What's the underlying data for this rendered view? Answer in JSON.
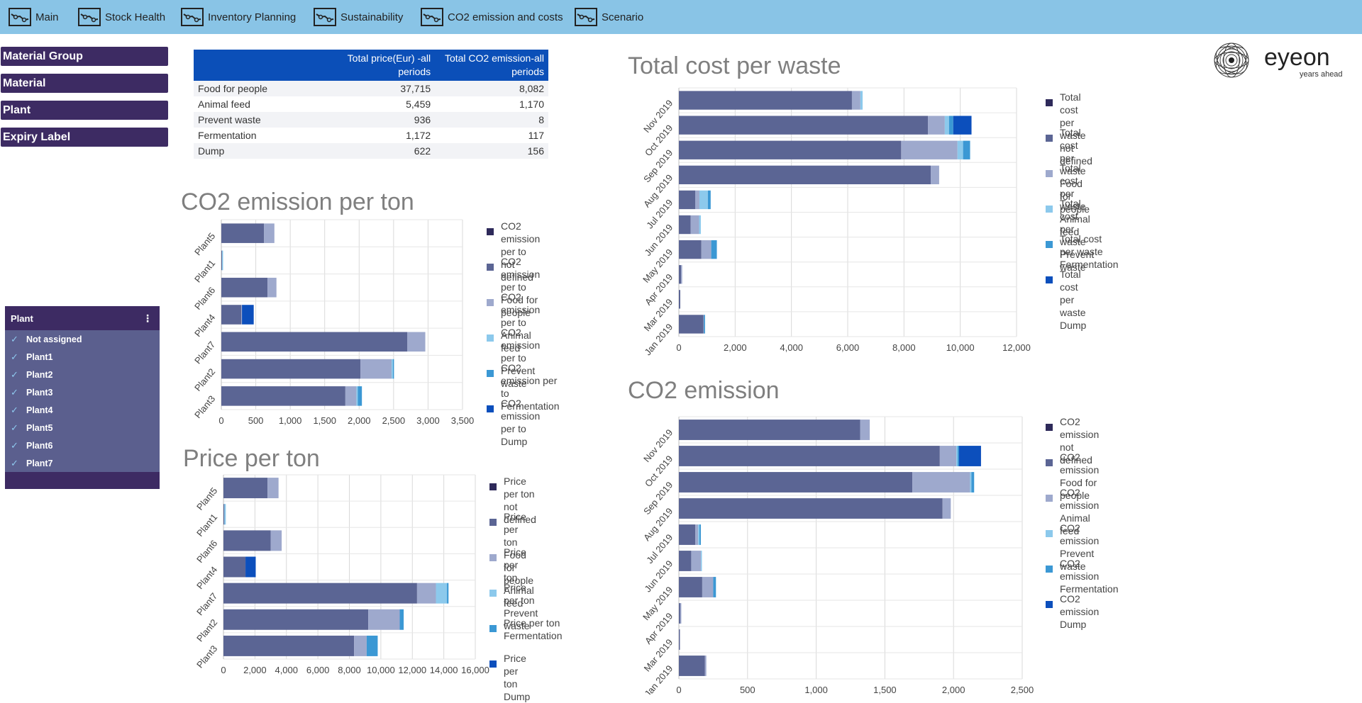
{
  "nav": {
    "tabs": [
      {
        "label": "Main"
      },
      {
        "label": "Stock Health"
      },
      {
        "label": "Inventory Planning"
      },
      {
        "label": "Sustainability"
      },
      {
        "label": "CO2 emission and costs"
      },
      {
        "label": "Scenario"
      }
    ]
  },
  "filters": {
    "buttons": [
      "Material Group",
      "Material",
      "Plant",
      "Expiry Label"
    ]
  },
  "plant_filter": {
    "title": "Plant",
    "items": [
      "Not assigned",
      "Plant1",
      "Plant2",
      "Plant3",
      "Plant4",
      "Plant5",
      "Plant6",
      "Plant7"
    ]
  },
  "summary_table": {
    "headers": [
      "",
      "Total price(Eur) -all periods",
      "Total CO2 emission-all periods"
    ],
    "rows": [
      [
        "Food for people",
        "37,715",
        "8,082"
      ],
      [
        "Animal feed",
        "5,459",
        "1,170"
      ],
      [
        "Prevent waste",
        "936",
        "8"
      ],
      [
        "Fermentation",
        "1,172",
        "117"
      ],
      [
        "Dump",
        "622",
        "156"
      ]
    ]
  },
  "logo": {
    "brand": "eyeon",
    "tagline": "years ahead"
  },
  "colors": {
    "not_defined": "#2e2a5a",
    "food_for_people": "#5b6594",
    "animal_feed": "#9ea9cd",
    "prevent_waste": "#8cc9ec",
    "fermentation": "#3b98d4",
    "dump": "#0c4fbc"
  },
  "chart_data": [
    {
      "id": "co2-per-ton",
      "type": "bar",
      "orientation": "horizontal",
      "stacked": true,
      "title": "CO2 emission per ton",
      "categories": [
        "Plant5",
        "Plant1",
        "Plant6",
        "Plant4",
        "Plant7",
        "Plant2",
        "Plant3"
      ],
      "xlim": [
        0,
        3500
      ],
      "xticks": [
        "0",
        "500",
        "1,000",
        "1,500",
        "2,000",
        "2,500",
        "3,000",
        "3,500"
      ],
      "tick_values": [
        0,
        500,
        1000,
        1500,
        2000,
        2500,
        3000,
        3500
      ],
      "series": [
        {
          "name": "CO2 emission per to\nnot defined",
          "color": "#2e2a5a",
          "values": [
            0,
            0,
            0,
            0,
            0,
            0,
            0
          ]
        },
        {
          "name": "CO2 emission per to\nFood for people",
          "color": "#5b6594",
          "values": [
            620,
            10,
            670,
            290,
            2700,
            2020,
            1800
          ]
        },
        {
          "name": "CO2 emission per to\nAnimal feed",
          "color": "#9ea9cd",
          "values": [
            150,
            0,
            130,
            10,
            260,
            450,
            160
          ]
        },
        {
          "name": "CO2 emission per to\nPrevent waste",
          "color": "#8cc9ec",
          "values": [
            0,
            10,
            0,
            0,
            0,
            20,
            20
          ]
        },
        {
          "name": "CO2 emission per to\nFermentation",
          "color": "#3b98d4",
          "values": [
            0,
            0,
            0,
            0,
            0,
            10,
            60
          ]
        },
        {
          "name": "CO2 emission per to\nDump",
          "color": "#0c4fbc",
          "values": [
            0,
            0,
            0,
            170,
            0,
            0,
            0
          ]
        }
      ]
    },
    {
      "id": "price-per-ton",
      "type": "bar",
      "orientation": "horizontal",
      "stacked": true,
      "title": "Price per ton",
      "categories": [
        "Plant5",
        "Plant1",
        "Plant6",
        "Plant4",
        "Plant7",
        "Plant2",
        "Plant3"
      ],
      "xlim": [
        0,
        16000
      ],
      "xticks": [
        "0",
        "2,000",
        "4,000",
        "6,000",
        "8,000",
        "10,000",
        "12,000",
        "14,000",
        "16,000"
      ],
      "tick_values": [
        0,
        2000,
        4000,
        6000,
        8000,
        10000,
        12000,
        14000,
        16000
      ],
      "series": [
        {
          "name": "Price per ton\nnot defined",
          "color": "#2e2a5a",
          "values": [
            0,
            0,
            0,
            0,
            0,
            0,
            0
          ]
        },
        {
          "name": "Price per ton\nFood for people",
          "color": "#5b6594",
          "values": [
            2800,
            50,
            3000,
            1400,
            12300,
            9200,
            8300
          ]
        },
        {
          "name": "Price per ton\nAnimal feed",
          "color": "#9ea9cd",
          "values": [
            700,
            0,
            700,
            0,
            1200,
            2000,
            800
          ]
        },
        {
          "name": "Price per ton\nPrevent waste",
          "color": "#8cc9ec",
          "values": [
            0,
            100,
            0,
            0,
            700,
            0,
            0
          ]
        },
        {
          "name": "Price per ton\nFermentation",
          "color": "#3b98d4",
          "values": [
            0,
            0,
            0,
            0,
            100,
            250,
            700
          ]
        },
        {
          "name": "Price per ton\nDump",
          "color": "#0c4fbc",
          "values": [
            0,
            0,
            0,
            650,
            0,
            0,
            0
          ]
        }
      ]
    },
    {
      "id": "total-cost-per-waste",
      "type": "bar",
      "orientation": "horizontal",
      "stacked": true,
      "title": "Total cost per waste",
      "categories": [
        "Nov 2019",
        "Oct 2019",
        "Sep 2019",
        "Aug 2019",
        "Jul 2019",
        "Jun 2019",
        "May 2019",
        "Apr 2019",
        "Mar 2019",
        "Jan 2019"
      ],
      "xlim": [
        0,
        12000
      ],
      "xticks": [
        "0",
        "2,000",
        "4,000",
        "6,000",
        "8,000",
        "10,000",
        "12,000"
      ],
      "tick_values": [
        0,
        2000,
        4000,
        6000,
        8000,
        10000,
        12000
      ],
      "series": [
        {
          "name": "Total cost per waste\nnot defined",
          "color": "#2e2a5a",
          "values": [
            0,
            0,
            0,
            0,
            0,
            0,
            0,
            0,
            0,
            0
          ]
        },
        {
          "name": "Total cost per waste\nFood for people",
          "color": "#5b6594",
          "values": [
            6150,
            8850,
            7900,
            8950,
            580,
            420,
            800,
            80,
            50,
            870
          ]
        },
        {
          "name": "Total cost per waste\nAnimal feed",
          "color": "#9ea9cd",
          "values": [
            300,
            600,
            2000,
            300,
            150,
            300,
            350,
            20,
            0,
            20
          ]
        },
        {
          "name": "Total cost per waste\nPrevent waste",
          "color": "#8cc9ec",
          "values": [
            80,
            150,
            200,
            0,
            300,
            60,
            0,
            0,
            0,
            0
          ]
        },
        {
          "name": "Total cost per waste\nFermentation",
          "color": "#3b98d4",
          "values": [
            0,
            150,
            250,
            0,
            100,
            0,
            200,
            0,
            0,
            40
          ]
        },
        {
          "name": "Total cost per waste\nDump",
          "color": "#0c4fbc",
          "values": [
            0,
            650,
            0,
            0,
            0,
            0,
            0,
            0,
            0,
            0
          ]
        }
      ]
    },
    {
      "id": "co2-emission",
      "type": "bar",
      "orientation": "horizontal",
      "stacked": true,
      "title": "CO2 emission",
      "categories": [
        "Nov 2019",
        "Oct 2019",
        "Sep 2019",
        "Aug 2019",
        "Jul 2019",
        "Jun 2019",
        "May 2019",
        "Apr 2019",
        "Mar 2019",
        "Jan 2019"
      ],
      "xlim": [
        0,
        2500
      ],
      "xticks": [
        "0",
        "500",
        "1,000",
        "1,500",
        "2,000",
        "2,500"
      ],
      "tick_values": [
        0,
        500,
        1000,
        1500,
        2000,
        2500
      ],
      "series": [
        {
          "name": "CO2 emission\nnot defined",
          "color": "#2e2a5a",
          "values": [
            0,
            0,
            0,
            0,
            0,
            0,
            0,
            0,
            0,
            0
          ]
        },
        {
          "name": "CO2 emission\nFood for people",
          "color": "#5b6594",
          "values": [
            1320,
            1900,
            1700,
            1920,
            120,
            90,
            170,
            10,
            5,
            190
          ]
        },
        {
          "name": "CO2 emission\nAnimal feed",
          "color": "#9ea9cd",
          "values": [
            70,
            120,
            420,
            60,
            20,
            70,
            80,
            5,
            0,
            10
          ]
        },
        {
          "name": "CO2 emission\nPrevent waste",
          "color": "#8cc9ec",
          "values": [
            0,
            10,
            10,
            0,
            10,
            5,
            0,
            0,
            0,
            0
          ]
        },
        {
          "name": "CO2 emission\nFermentation",
          "color": "#3b98d4",
          "values": [
            0,
            10,
            20,
            0,
            10,
            0,
            20,
            0,
            0,
            0
          ]
        },
        {
          "name": "CO2 emission\nDump",
          "color": "#0c4fbc",
          "values": [
            0,
            160,
            0,
            0,
            0,
            0,
            0,
            0,
            0,
            0
          ]
        }
      ]
    }
  ]
}
